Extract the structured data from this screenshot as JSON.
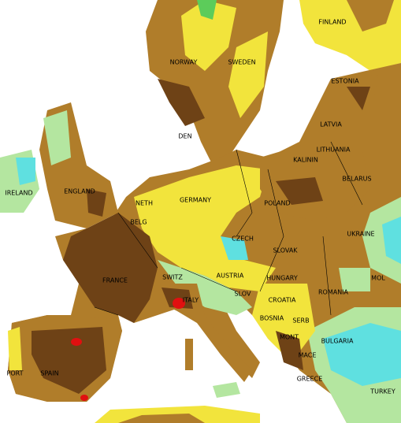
{
  "labels": [
    "FINLAND",
    "NORWAY",
    "SWEDEN",
    "ESTONIA",
    "LATVIA",
    "LITHUANIA",
    "KALININ",
    "DEN",
    "IRELAND",
    "ENGLAND",
    "NETH",
    "BELG",
    "GERMANY",
    "POLAND",
    "BELARUS",
    "CZECH",
    "SLOVAK",
    "UKRAINE",
    "FRANCE",
    "SWITZ",
    "AUSTRIA",
    "HUNGARY",
    "MOL",
    "ROMANIA",
    "SLOV",
    "CROATIA",
    "BOSNIA",
    "SERB",
    "MONT",
    "MACE",
    "BULGARIA",
    "ITALY",
    "PORT",
    "SPAIN",
    "GREECE",
    "TURKEY"
  ]
}
